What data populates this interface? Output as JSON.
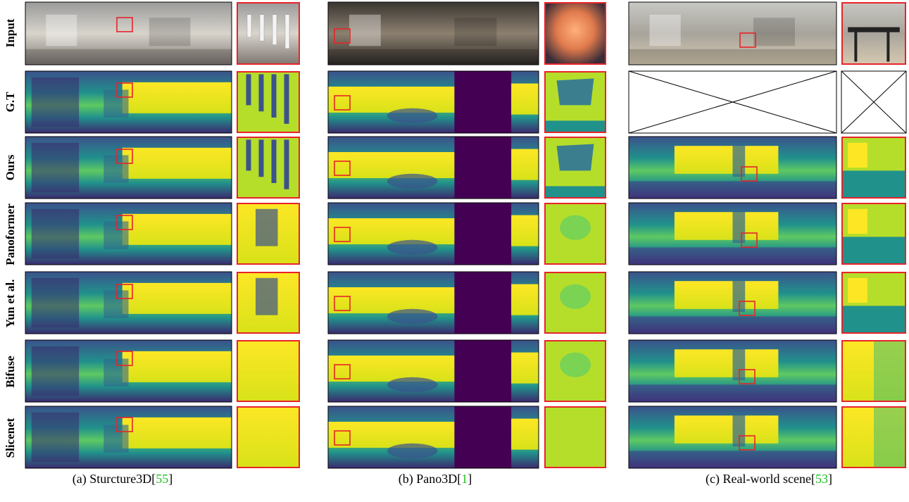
{
  "row_labels": [
    "Input",
    "G.T",
    "Ours",
    "Panoformer",
    "Yun et al.",
    "Bifuse",
    "Slicenet"
  ],
  "columns": [
    {
      "caption_text": "(a) Sturcture3D[",
      "ref": "55",
      "caption_close": "]"
    },
    {
      "caption_text": "(b) Pano3D[",
      "ref": "1",
      "caption_close": "]"
    },
    {
      "caption_text": "(c) Real-world scene[",
      "ref": "53",
      "caption_close": "]"
    }
  ],
  "colors": {
    "highlight": "#e8232a",
    "depth_far": "#440154",
    "depth_mid": "#21918c",
    "depth_near": "#fde725",
    "citation": "#1fbf1f"
  },
  "notes": {
    "missing_ground_truth_column": 2
  }
}
